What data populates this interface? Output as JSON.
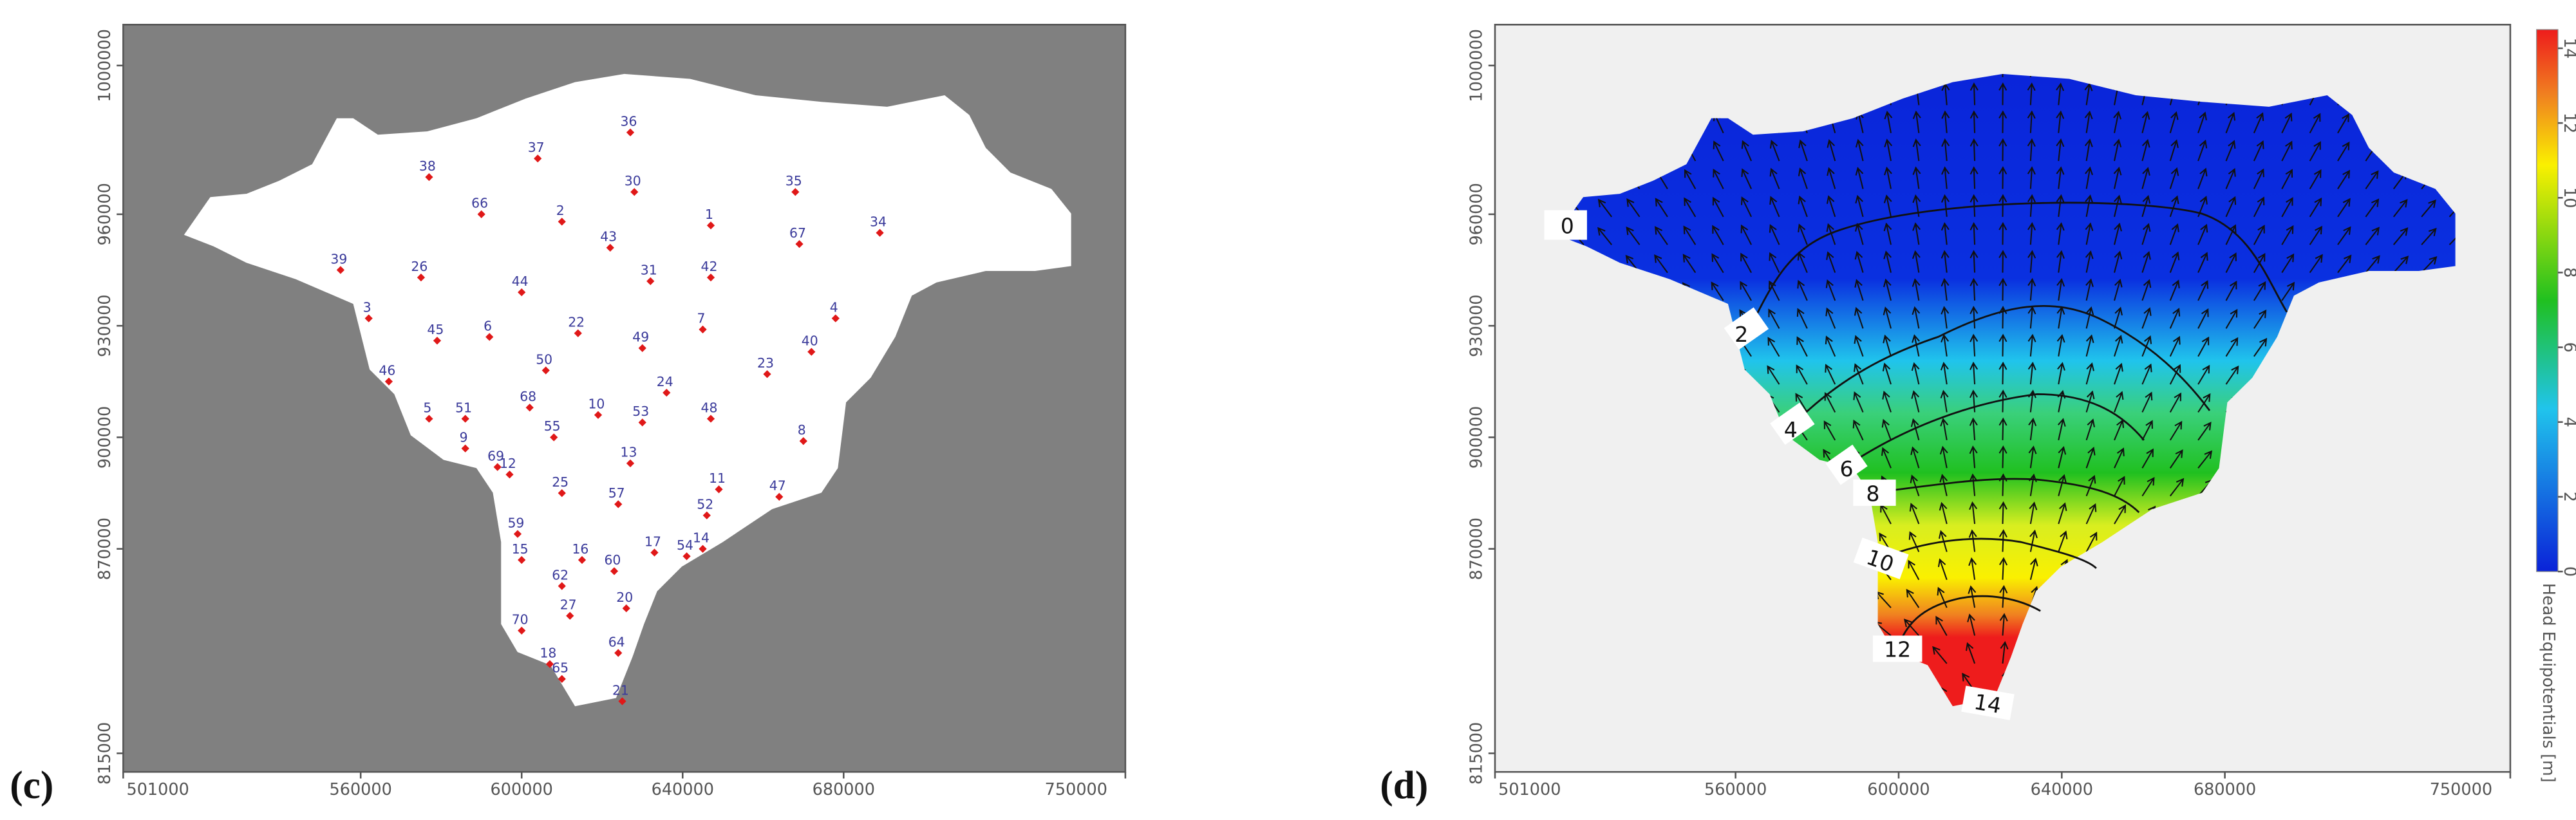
{
  "panels": [
    {
      "label": "(c)",
      "xlim": [
        501000,
        750000
      ],
      "ylim": [
        810000,
        1011000
      ],
      "xticks": [
        501000,
        560000,
        600000,
        640000,
        680000,
        750000
      ],
      "yticks": [
        815000,
        870000,
        900000,
        930000,
        960000,
        1000000
      ],
      "wells": [
        {
          "name": "36",
          "x": 627000,
          "y": 982000
        },
        {
          "name": "37",
          "x": 604000,
          "y": 975000
        },
        {
          "name": "38",
          "x": 577000,
          "y": 970000
        },
        {
          "name": "30",
          "x": 628000,
          "y": 966000
        },
        {
          "name": "35",
          "x": 668000,
          "y": 966000
        },
        {
          "name": "66",
          "x": 590000,
          "y": 960000
        },
        {
          "name": "2",
          "x": 610000,
          "y": 958000
        },
        {
          "name": "1",
          "x": 647000,
          "y": 957000
        },
        {
          "name": "43",
          "x": 622000,
          "y": 951000
        },
        {
          "name": "34",
          "x": 689000,
          "y": 955000
        },
        {
          "name": "67",
          "x": 669000,
          "y": 952000
        },
        {
          "name": "39",
          "x": 555000,
          "y": 945000
        },
        {
          "name": "26",
          "x": 575000,
          "y": 943000
        },
        {
          "name": "31",
          "x": 632000,
          "y": 942000
        },
        {
          "name": "42",
          "x": 647000,
          "y": 943000
        },
        {
          "name": "44",
          "x": 600000,
          "y": 939000
        },
        {
          "name": "3",
          "x": 562000,
          "y": 932000
        },
        {
          "name": "4",
          "x": 678000,
          "y": 932000
        },
        {
          "name": "45",
          "x": 579000,
          "y": 926000
        },
        {
          "name": "6",
          "x": 592000,
          "y": 927000
        },
        {
          "name": "22",
          "x": 614000,
          "y": 928000
        },
        {
          "name": "7",
          "x": 645000,
          "y": 929000
        },
        {
          "name": "49",
          "x": 630000,
          "y": 924000
        },
        {
          "name": "40",
          "x": 672000,
          "y": 923000
        },
        {
          "name": "23",
          "x": 661000,
          "y": 917000
        },
        {
          "name": "50",
          "x": 606000,
          "y": 918000
        },
        {
          "name": "46",
          "x": 567000,
          "y": 915000
        },
        {
          "name": "24",
          "x": 636000,
          "y": 912000
        },
        {
          "name": "68",
          "x": 602000,
          "y": 908000
        },
        {
          "name": "10",
          "x": 619000,
          "y": 906000
        },
        {
          "name": "5",
          "x": 577000,
          "y": 905000
        },
        {
          "name": "51",
          "x": 586000,
          "y": 905000
        },
        {
          "name": "55",
          "x": 608000,
          "y": 900000
        },
        {
          "name": "53",
          "x": 630000,
          "y": 904000
        },
        {
          "name": "48",
          "x": 647000,
          "y": 905000
        },
        {
          "name": "8",
          "x": 670000,
          "y": 899000
        },
        {
          "name": "9",
          "x": 586000,
          "y": 897000
        },
        {
          "name": "69",
          "x": 594000,
          "y": 892000
        },
        {
          "name": "12",
          "x": 597000,
          "y": 890000
        },
        {
          "name": "13",
          "x": 627000,
          "y": 893000
        },
        {
          "name": "11",
          "x": 649000,
          "y": 886000
        },
        {
          "name": "25",
          "x": 610000,
          "y": 885000
        },
        {
          "name": "57",
          "x": 624000,
          "y": 882000
        },
        {
          "name": "52",
          "x": 646000,
          "y": 879000
        },
        {
          "name": "47",
          "x": 664000,
          "y": 884000
        },
        {
          "name": "59",
          "x": 599000,
          "y": 874000
        },
        {
          "name": "15",
          "x": 600000,
          "y": 867000
        },
        {
          "name": "16",
          "x": 615000,
          "y": 867000
        },
        {
          "name": "17",
          "x": 633000,
          "y": 869000
        },
        {
          "name": "54",
          "x": 641000,
          "y": 868000
        },
        {
          "name": "14",
          "x": 645000,
          "y": 870000
        },
        {
          "name": "60",
          "x": 623000,
          "y": 864000
        },
        {
          "name": "62",
          "x": 610000,
          "y": 860000
        },
        {
          "name": "20",
          "x": 626000,
          "y": 854000
        },
        {
          "name": "27",
          "x": 612000,
          "y": 852000
        },
        {
          "name": "70",
          "x": 600000,
          "y": 848000
        },
        {
          "name": "64",
          "x": 624000,
          "y": 842000
        },
        {
          "name": "18",
          "x": 607000,
          "y": 839000
        },
        {
          "name": "65",
          "x": 610000,
          "y": 835000
        },
        {
          "name": "21",
          "x": 625000,
          "y": 829000
        }
      ]
    },
    {
      "label": "(d)",
      "xlim": [
        501000,
        750000
      ],
      "ylim": [
        810000,
        1011000
      ],
      "xticks": [
        501000,
        560000,
        600000,
        640000,
        680000,
        750000
      ],
      "yticks": [
        815000,
        870000,
        900000,
        930000,
        960000,
        1000000
      ],
      "contours": [
        0,
        2,
        4,
        6,
        8,
        10,
        12,
        14
      ],
      "colorbar": {
        "label": "Head Equipotentials [m]",
        "lim": [
          0,
          14.5
        ],
        "ticks": [
          0,
          2,
          4,
          6,
          8,
          10,
          12,
          14
        ]
      }
    }
  ]
}
